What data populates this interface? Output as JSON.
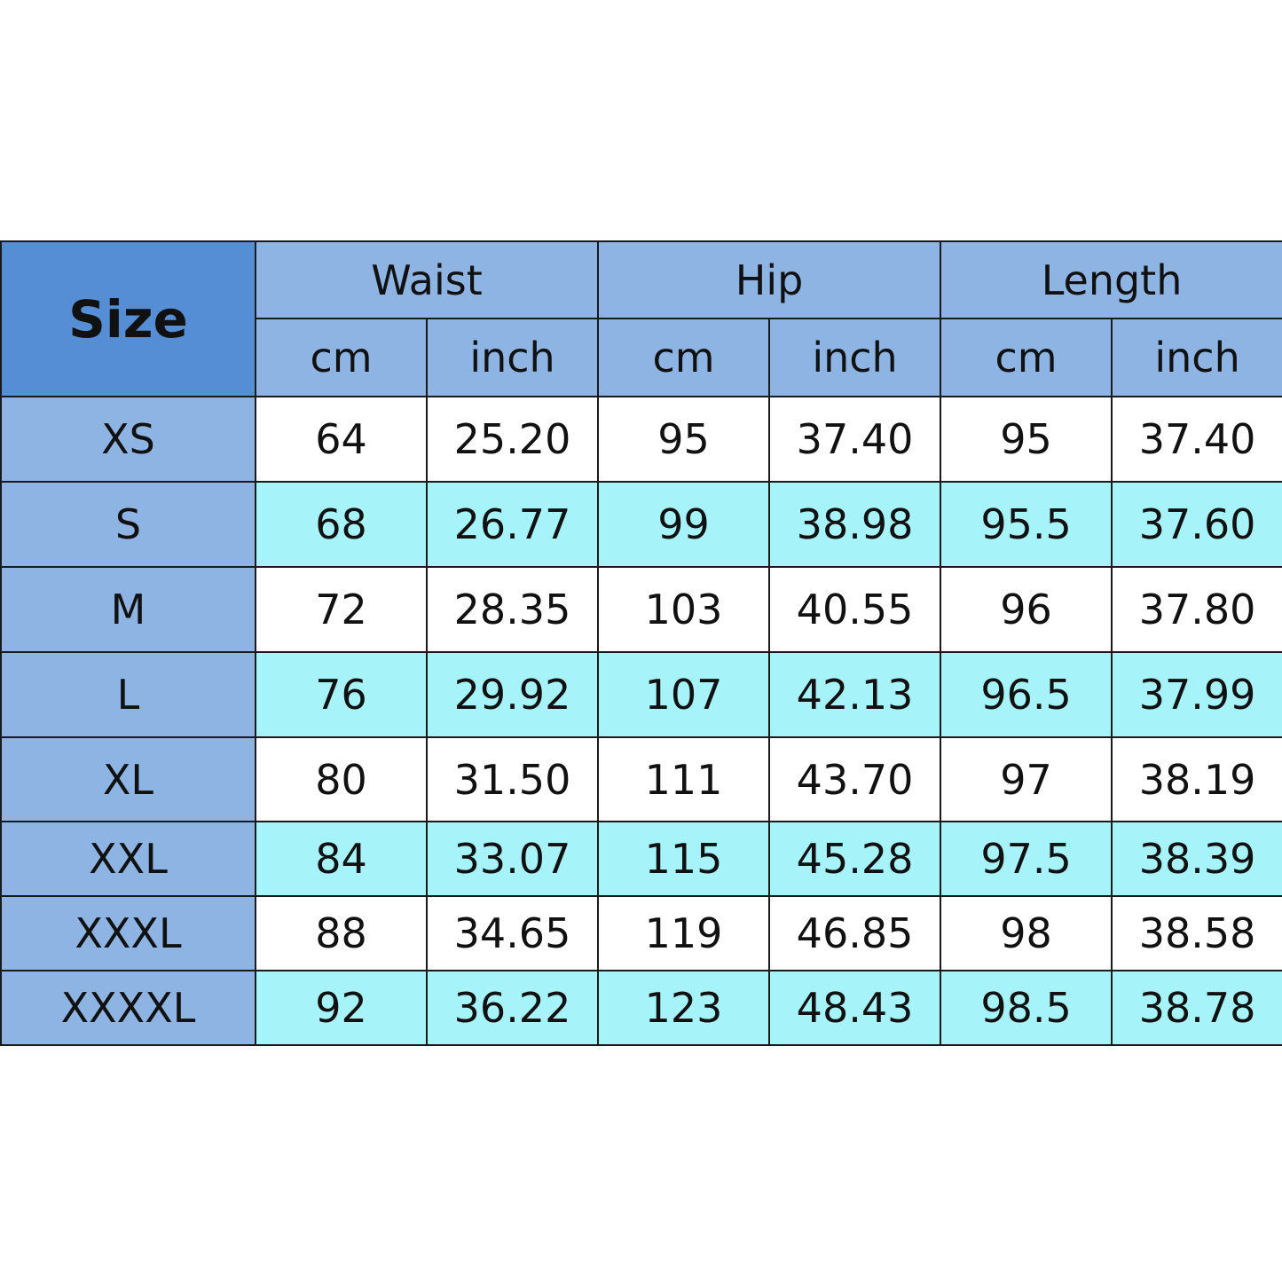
{
  "colors": {
    "size_header": "#558ED5",
    "header": "#8EB4E3",
    "size_column": "#8EB4E3",
    "row_white": "#ffffff",
    "row_cyan": "#A6F3FA",
    "border": "#1a1a1a"
  },
  "table": {
    "size_label": "Size",
    "groups": [
      "Waist",
      "Hip",
      "Length"
    ],
    "units": [
      "cm",
      "inch",
      "cm",
      "inch",
      "cm",
      "inch"
    ],
    "rows": [
      {
        "size": "XS",
        "values": [
          "64",
          "25.20",
          "95",
          "37.40",
          "95",
          "37.40"
        ]
      },
      {
        "size": "S",
        "values": [
          "68",
          "26.77",
          "99",
          "38.98",
          "95.5",
          "37.60"
        ]
      },
      {
        "size": "M",
        "values": [
          "72",
          "28.35",
          "103",
          "40.55",
          "96",
          "37.80"
        ]
      },
      {
        "size": "L",
        "values": [
          "76",
          "29.92",
          "107",
          "42.13",
          "96.5",
          "37.99"
        ]
      },
      {
        "size": "XL",
        "values": [
          "80",
          "31.50",
          "111",
          "43.70",
          "97",
          "38.19"
        ]
      },
      {
        "size": "XXL",
        "values": [
          "84",
          "33.07",
          "115",
          "45.28",
          "97.5",
          "38.39"
        ]
      },
      {
        "size": "XXXL",
        "values": [
          "88",
          "34.65",
          "119",
          "46.85",
          "98",
          "38.58"
        ]
      },
      {
        "size": "XXXXL",
        "values": [
          "92",
          "36.22",
          "123",
          "48.43",
          "98.5",
          "38.78"
        ]
      }
    ]
  }
}
